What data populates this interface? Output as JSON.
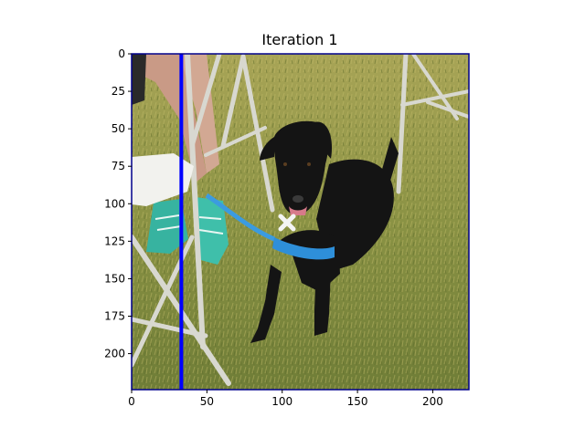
{
  "title": "Iteration 1",
  "image": {
    "subject": "black-dog-on-grass",
    "width": 224,
    "height": 224,
    "x_ticks": [
      0,
      50,
      100,
      150,
      200
    ],
    "y_ticks": [
      0,
      25,
      50,
      75,
      100,
      125,
      150,
      175,
      200
    ]
  },
  "overlay": {
    "vertical_line_x": 33,
    "line_color": "#0000ff",
    "frame_color": "#00008b"
  },
  "colors": {
    "grass_light": "#b5b25a",
    "grass_dark": "#6f7d37",
    "dog": "#141414",
    "collar": "#2e8fd9",
    "chair_frame": "#d8d8d0",
    "shoe": "#37b3a0"
  }
}
